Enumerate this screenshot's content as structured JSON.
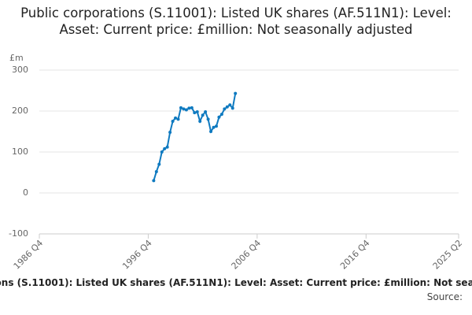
{
  "chart_data": {
    "type": "line",
    "title": "Public corporations (S.11001): Listed UK shares (AF.511N1): Level: Asset: Current price: £million: Not seasonally adjusted",
    "y_label": "£m",
    "source": "Source:",
    "x": [
      "1997 Q2",
      "1997 Q3",
      "1997 Q4",
      "1998 Q1",
      "1998 Q2",
      "1998 Q3",
      "1998 Q4",
      "1999 Q1",
      "1999 Q2",
      "1999 Q3",
      "1999 Q4",
      "2000 Q1",
      "2000 Q2",
      "2000 Q3",
      "2000 Q4",
      "2001 Q1",
      "2001 Q2",
      "2001 Q3",
      "2001 Q4",
      "2002 Q1",
      "2002 Q2",
      "2002 Q3",
      "2002 Q4",
      "2003 Q1",
      "2003 Q2",
      "2003 Q3",
      "2003 Q4",
      "2004 Q1",
      "2004 Q2",
      "2004 Q3",
      "2004 Q4"
    ],
    "series": [
      {
        "name": "Public corporations (S.11001): Listed UK shares (AF.511N1)",
        "color": "#0f7ac0",
        "values": [
          30,
          52,
          70,
          100,
          108,
          112,
          148,
          175,
          183,
          180,
          208,
          205,
          203,
          207,
          208,
          196,
          198,
          175,
          190,
          198,
          180,
          150,
          160,
          163,
          185,
          192,
          205,
          210,
          215,
          207,
          243
        ]
      }
    ],
    "xlim": [
      "1986 Q4",
      "2025 Q2"
    ],
    "xticks": [
      "1986 Q4",
      "1996 Q4",
      "2006 Q4",
      "2016 Q4",
      "2025 Q2"
    ],
    "ylim": [
      -100,
      300
    ],
    "yticks": [
      -100,
      0,
      100,
      200,
      300
    ],
    "grid": true
  }
}
